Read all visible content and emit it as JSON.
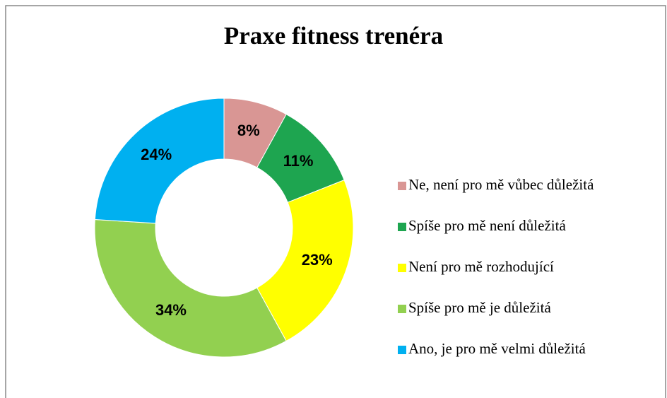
{
  "chart_data": {
    "type": "donut",
    "title": "Praxe fitness trenéra",
    "categories": [
      "Ne, není pro mě vůbec důležitá",
      "Spíše pro mě není důležitá",
      "Není pro mě rozhodující",
      "Spíše pro mě je důležitá",
      "Ano, je pro mě velmi důležitá"
    ],
    "values": [
      8,
      11,
      23,
      34,
      24
    ],
    "value_labels": [
      "8%",
      "11%",
      "23%",
      "34%",
      "24%"
    ],
    "colors": [
      "#d99694",
      "#1ea550",
      "#ffff00",
      "#92d050",
      "#00b0f0"
    ],
    "legend": "right"
  }
}
